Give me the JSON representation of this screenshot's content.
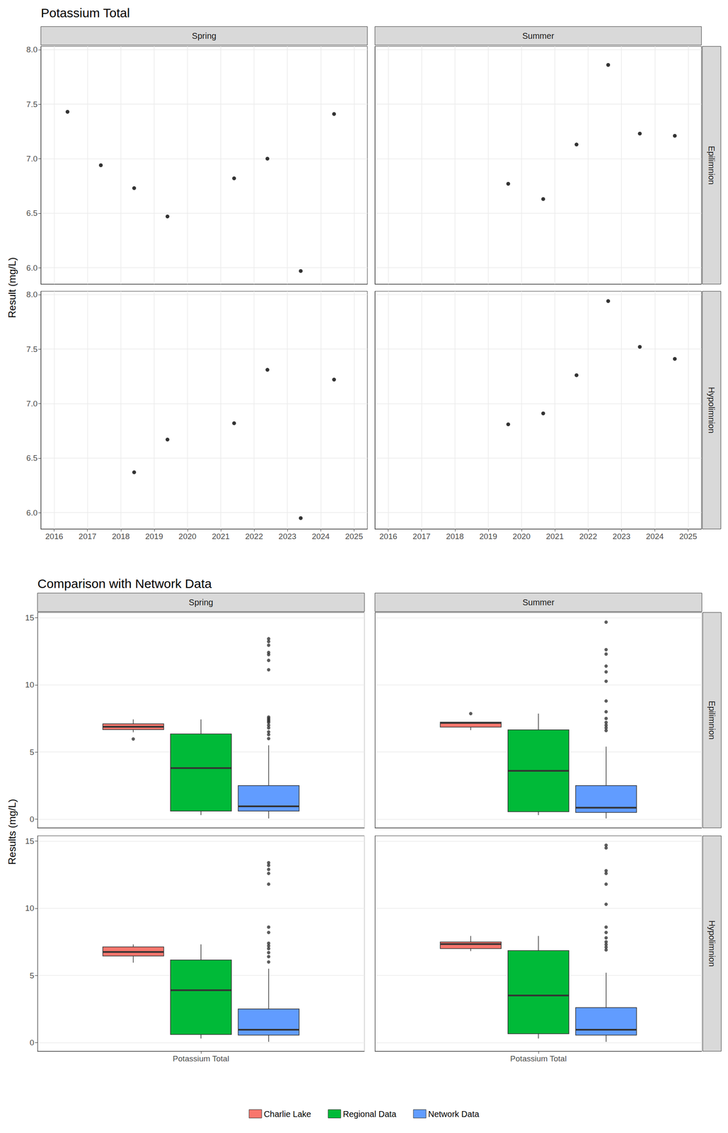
{
  "chart_data": [
    {
      "type": "scatter",
      "title": "Potassium Total",
      "y_label": "Result (mg/L)",
      "columns": [
        "Spring",
        "Summer"
      ],
      "rows": [
        "Epilimnion",
        "Hypolimnion"
      ],
      "color": "#000000",
      "grid": true,
      "xlim": [
        2015.6,
        2025.4
      ],
      "xticks": [
        2016,
        2017,
        2018,
        2019,
        2020,
        2021,
        2022,
        2023,
        2024,
        2025
      ],
      "ylim": [
        5.85,
        8.03
      ],
      "yticks": [
        {
          "value": 6,
          "label": "6.0"
        },
        6.5,
        {
          "value": 7,
          "label": "7.0"
        },
        7.5,
        {
          "value": 8,
          "label": "8.0"
        }
      ],
      "panels": [
        {
          "column": "Spring",
          "row": "Epilimnion",
          "x": [
            2016.4,
            2017.4,
            2018.4,
            2019.4,
            2021.4,
            2022.4,
            2023.4,
            2024.4
          ],
          "values": [
            7.43,
            6.94,
            6.73,
            6.47,
            6.82,
            7.0,
            5.97,
            7.41
          ]
        },
        {
          "column": "Summer",
          "row": "Epilimnion",
          "x": [
            2019.6,
            2020.65,
            2021.65,
            2022.6,
            2023.55,
            2024.6
          ],
          "values": [
            6.77,
            6.63,
            7.13,
            7.86,
            7.23,
            7.21
          ]
        },
        {
          "column": "Spring",
          "row": "Hypolimnion",
          "x": [
            2018.4,
            2019.4,
            2021.4,
            2022.4,
            2023.4,
            2024.4
          ],
          "values": [
            6.37,
            6.67,
            6.82,
            7.31,
            5.95,
            7.22
          ]
        },
        {
          "column": "Summer",
          "row": "Hypolimnion",
          "x": [
            2019.6,
            2020.65,
            2021.65,
            2022.6,
            2023.55,
            2024.6
          ],
          "values": [
            6.81,
            6.91,
            7.26,
            7.94,
            7.52,
            7.41
          ]
        }
      ]
    },
    {
      "type": "boxplot",
      "title": "Comparison with Network Data",
      "y_label": "Results (mg/L)",
      "categories": [
        "Potassium Total"
      ],
      "columns": [
        "Spring",
        "Summer"
      ],
      "rows": [
        "Epilimnion",
        "Hypolimnion"
      ],
      "grid": true,
      "legend": "bottom",
      "ylim": [
        -0.65,
        15.4
      ],
      "yticks": [
        0,
        5,
        10,
        15
      ],
      "series": [
        {
          "name": "Charlie Lake",
          "color": "#F8766D"
        },
        {
          "name": "Regional Data",
          "color": "#00BA38"
        },
        {
          "name": "Network Data",
          "color": "#619CFF"
        }
      ],
      "panels": [
        {
          "column": "Spring",
          "row": "Epilimnion",
          "boxes": [
            {
              "min": 6.47,
              "q1": 6.665,
              "median": 6.88,
              "q3": 7.1,
              "max": 7.43,
              "outliers": [
                5.97
              ]
            },
            {
              "min": 0.3,
              "q1": 0.6,
              "median": 3.8,
              "q3": 6.35,
              "max": 7.43,
              "outliers": []
            },
            {
              "min": 0.05,
              "q1": 0.6,
              "median": 0.95,
              "q3": 2.5,
              "max": 5.5,
              "outliers": [
                13.44,
                13.23,
                12.96,
                12.42,
                12.26,
                11.83,
                11.13,
                7.6,
                7.5,
                7.4,
                7.3,
                7.2,
                7.0,
                6.8,
                6.5,
                6.3,
                6.0
              ]
            }
          ]
        },
        {
          "column": "Summer",
          "row": "Epilimnion",
          "boxes": [
            {
              "min": 6.63,
              "q1": 6.86,
              "median": 7.17,
              "q3": 7.225,
              "max": 7.23,
              "outliers": [
                7.86
              ]
            },
            {
              "min": 0.3,
              "q1": 0.55,
              "median": 3.6,
              "q3": 6.65,
              "max": 7.86,
              "outliers": []
            },
            {
              "min": 0.05,
              "q1": 0.5,
              "median": 0.85,
              "q3": 2.5,
              "max": 5.4,
              "outliers": [
                14.68,
                12.63,
                12.3,
                11.4,
                10.97,
                10.27,
                8.8,
                8.0,
                7.5,
                7.2,
                7.0,
                6.8,
                6.6
              ]
            }
          ]
        },
        {
          "column": "Spring",
          "row": "Hypolimnion",
          "boxes": [
            {
              "min": 5.95,
              "q1": 6.445,
              "median": 6.745,
              "q3": 7.12,
              "max": 7.31,
              "outliers": []
            },
            {
              "min": 0.3,
              "q1": 0.6,
              "median": 3.9,
              "q3": 6.15,
              "max": 7.31,
              "outliers": []
            },
            {
              "min": 0.05,
              "q1": 0.55,
              "median": 0.95,
              "q3": 2.5,
              "max": 5.5,
              "outliers": [
                13.4,
                13.2,
                12.9,
                12.6,
                11.8,
                8.6,
                8.2,
                7.4,
                7.2,
                7.0,
                6.7,
                6.4,
                6.0
              ]
            }
          ]
        },
        {
          "column": "Summer",
          "row": "Hypolimnion",
          "boxes": [
            {
              "min": 6.81,
              "q1": 6.9975,
              "median": 7.335,
              "q3": 7.4925,
              "max": 7.94,
              "outliers": []
            },
            {
              "min": 0.3,
              "q1": 0.65,
              "median": 3.5,
              "q3": 6.85,
              "max": 7.94,
              "outliers": []
            },
            {
              "min": 0.05,
              "q1": 0.55,
              "median": 0.95,
              "q3": 2.6,
              "max": 5.2,
              "outliers": [
                14.7,
                14.5,
                12.8,
                12.6,
                11.8,
                10.3,
                8.6,
                8.2,
                7.8,
                7.5,
                7.3,
                7.1,
                6.9
              ]
            }
          ]
        }
      ]
    }
  ]
}
